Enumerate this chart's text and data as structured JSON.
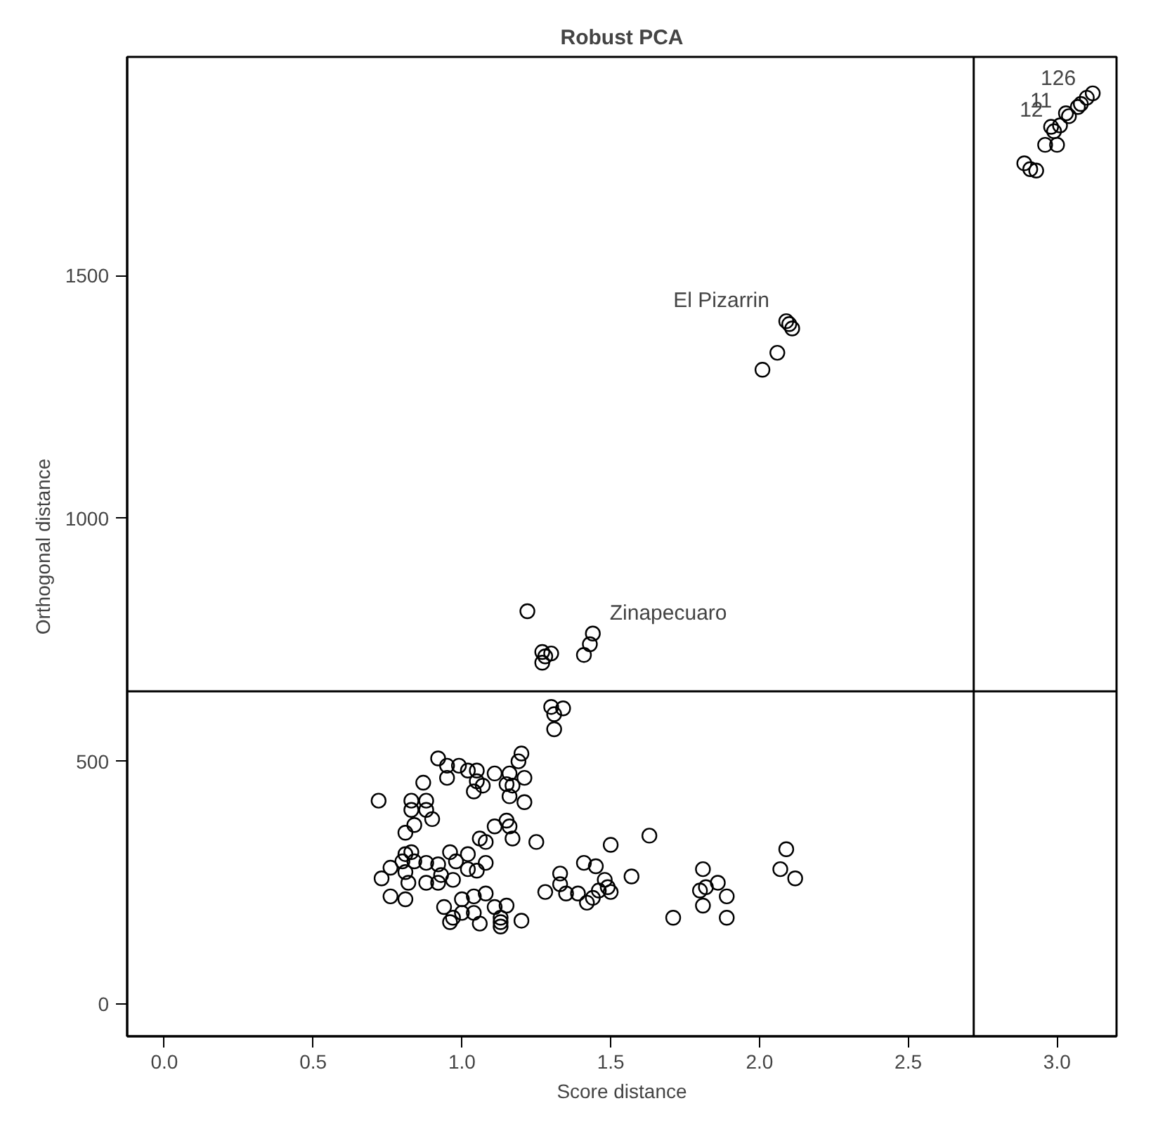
{
  "chart_data": {
    "type": "scatter",
    "title": "Robust PCA",
    "xlabel": "Score distance",
    "ylabel": "Orthogonal distance",
    "xlim": [
      -0.125,
      3.2
    ],
    "ylim": [
      -66,
      1950
    ],
    "xticks": [
      {
        "value": 0,
        "label": "0.0"
      },
      0.5,
      {
        "value": 1,
        "label": "1.0"
      },
      1.5,
      {
        "value": 2,
        "label": "2.0"
      },
      2.5,
      {
        "value": 3,
        "label": "3.0"
      }
    ],
    "yticks": [
      0,
      500,
      1000,
      1500
    ],
    "grid": false,
    "marker": "circle",
    "ref_lines": [
      {
        "axis": "x",
        "value": 2.72,
        "color": "#000000"
      },
      {
        "axis": "y",
        "value": 644,
        "color": "#000000"
      }
    ],
    "annotations": [
      {
        "text": "El Pizarrin",
        "x": 2.09,
        "y": 1406
      },
      {
        "text": "Zinapecuaro",
        "x": 1.44,
        "y": 763
      },
      {
        "text": "126",
        "x": 3.12,
        "y": 1875
      },
      {
        "text": "11",
        "x": 3.04,
        "y": 1828
      },
      {
        "text": "12",
        "x": 3.01,
        "y": 1809
      }
    ],
    "series": [
      {
        "color": "#000000",
        "x": [
          2.89,
          2.93,
          2.91,
          2.96,
          3.0,
          2.98,
          3.01,
          3.04,
          3.07,
          3.1,
          3.12,
          3.08,
          3.03,
          2.99,
          2.09,
          2.1,
          2.11,
          2.06,
          2.01,
          1.22,
          1.27,
          1.28,
          1.27,
          1.3,
          1.41,
          1.43,
          1.44,
          1.3,
          1.34,
          1.31,
          1.31,
          0.72,
          0.92,
          0.95,
          0.99,
          0.95,
          0.87,
          1.02,
          1.05,
          1.05,
          1.07,
          1.04,
          1.11,
          1.16,
          1.2,
          1.19,
          1.21,
          1.15,
          1.17,
          1.16,
          1.21,
          0.83,
          0.88,
          0.83,
          0.88,
          0.9,
          0.84,
          0.81,
          1.15,
          1.16,
          1.11,
          1.17,
          1.06,
          1.08,
          1.25,
          1.5,
          1.63,
          2.09,
          2.07,
          2.12,
          0.81,
          0.83,
          0.8,
          0.84,
          0.88,
          0.76,
          0.73,
          0.81,
          0.92,
          0.96,
          1.02,
          0.98,
          1.02,
          1.05,
          1.08,
          0.93,
          0.88,
          0.92,
          0.97,
          0.82,
          0.76,
          0.81,
          0.94,
          1.0,
          1.04,
          1.08,
          1.11,
          1.15,
          0.97,
          1.0,
          1.04,
          1.06,
          1.13,
          1.13,
          1.2,
          0.96,
          1.13,
          1.28,
          1.33,
          1.33,
          1.35,
          1.39,
          1.41,
          1.45,
          1.42,
          1.44,
          1.46,
          1.48,
          1.49,
          1.5,
          1.57,
          1.71,
          1.81,
          1.8,
          1.82,
          1.86,
          1.89,
          1.81,
          1.89
        ],
        "values": [
          1731,
          1716,
          1719,
          1769,
          1769,
          1806,
          1809,
          1828,
          1847,
          1866,
          1875,
          1853,
          1834,
          1797,
          1406,
          1400,
          1391,
          1341,
          1306,
          809,
          725,
          716,
          703,
          722,
          719,
          741,
          763,
          612,
          609,
          597,
          566,
          419,
          506,
          491,
          491,
          466,
          456,
          481,
          481,
          459,
          450,
          438,
          475,
          475,
          516,
          500,
          466,
          453,
          450,
          428,
          416,
          419,
          419,
          400,
          400,
          381,
          369,
          353,
          378,
          366,
          366,
          341,
          341,
          334,
          334,
          328,
          347,
          319,
          278,
          259,
          309,
          313,
          294,
          294,
          291,
          281,
          259,
          272,
          288,
          313,
          309,
          294,
          278,
          275,
          291,
          266,
          250,
          250,
          256,
          250,
          222,
          216,
          200,
          216,
          222,
          228,
          200,
          203,
          178,
          188,
          188,
          166,
          169,
          160,
          172,
          169,
          178,
          231,
          269,
          247,
          228,
          228,
          291,
          284,
          209,
          219,
          234,
          256,
          241,
          231,
          263,
          178,
          278,
          234,
          241,
          250,
          222,
          203,
          178
        ]
      }
    ]
  }
}
